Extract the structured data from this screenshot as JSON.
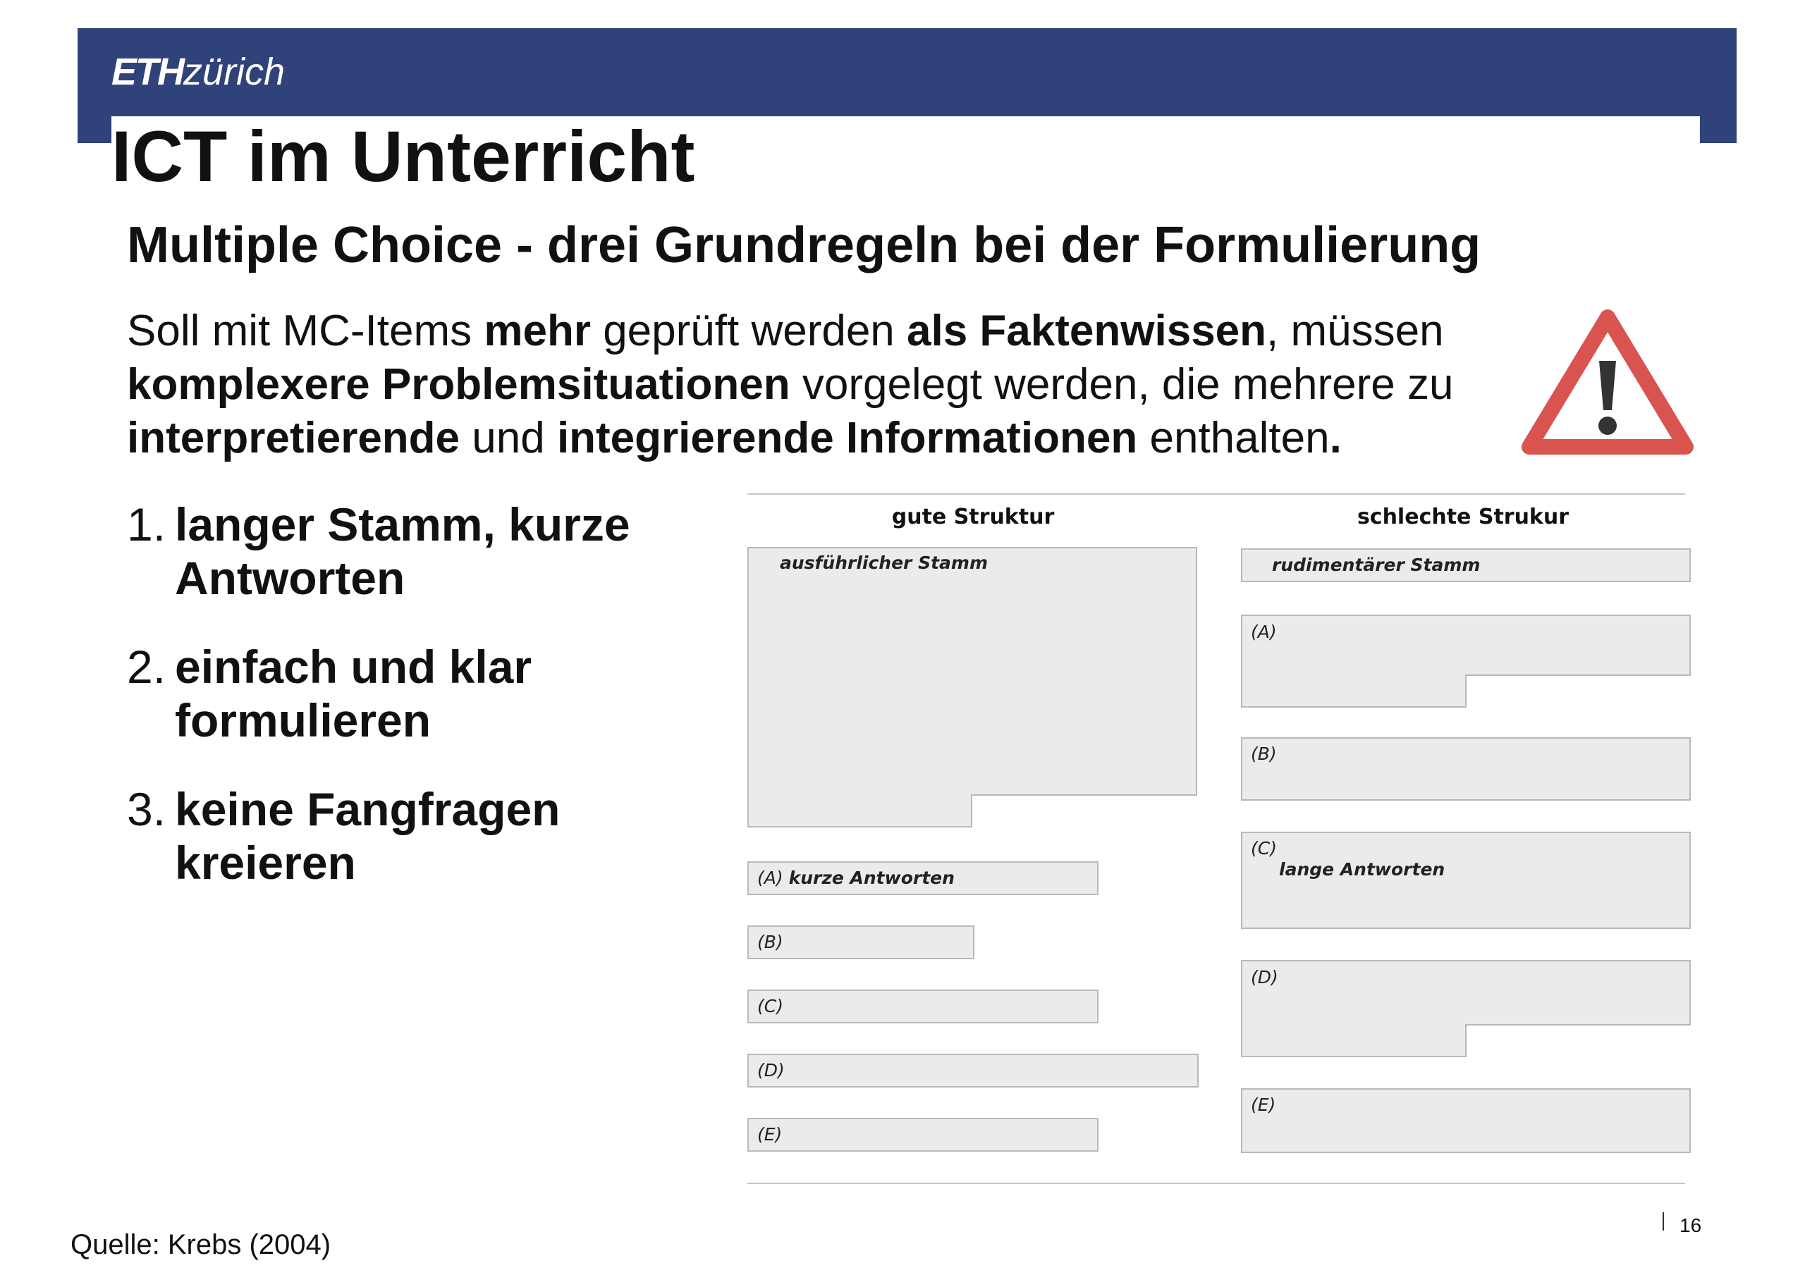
{
  "header": {
    "logo_eth": "ETH",
    "logo_zurich": "zürich",
    "brand_color": "#30427a"
  },
  "title": "ICT im Unterricht",
  "subtitle": "Multiple Choice - drei Grundregeln bei der Formulierung",
  "intro": {
    "p1": "Soll mit MC-Items ",
    "b1": "mehr",
    "p2": " geprüft werden ",
    "b2": "als Faktenwissen",
    "p3": ", müssen ",
    "b3": "komplexere Problemsituationen",
    "p4": " vorgelegt werden, die mehrere zu ",
    "b4": "interpretierende",
    "p5": " und ",
    "b5": "integrierende Informationen",
    "p6": " enthalten",
    "b6": "."
  },
  "warning_icon": {
    "name": "warning-triangle-icon",
    "color": "#d9534f",
    "symbol": "!"
  },
  "rules": [
    {
      "num": "1.",
      "text": "langer Stamm, kurze Antworten"
    },
    {
      "num": "2.",
      "text": "einfach und klar formulieren"
    },
    {
      "num": "3.",
      "text": "keine Fangfragen kreieren"
    }
  ],
  "diagram": {
    "good": {
      "heading": "gute  Struktur",
      "stem_label": "ausführlicher Stamm",
      "answers": [
        {
          "letter": "(A)",
          "text": "kurze Antworten"
        },
        {
          "letter": "(B)",
          "text": ""
        },
        {
          "letter": "(C)",
          "text": ""
        },
        {
          "letter": "(D)",
          "text": ""
        },
        {
          "letter": "(E)",
          "text": ""
        }
      ]
    },
    "bad": {
      "heading": "schlechte  Strukur",
      "stem_label": "rudimentärer Stamm",
      "answers": [
        {
          "letter": "(A)",
          "text": ""
        },
        {
          "letter": "(B)",
          "text": ""
        },
        {
          "letter": "(C)",
          "text": "lange Antworten"
        },
        {
          "letter": "(D)",
          "text": ""
        },
        {
          "letter": "(E)",
          "text": ""
        }
      ]
    }
  },
  "footer": {
    "source": "Quelle: Krebs (2004)",
    "page_number": "16"
  }
}
